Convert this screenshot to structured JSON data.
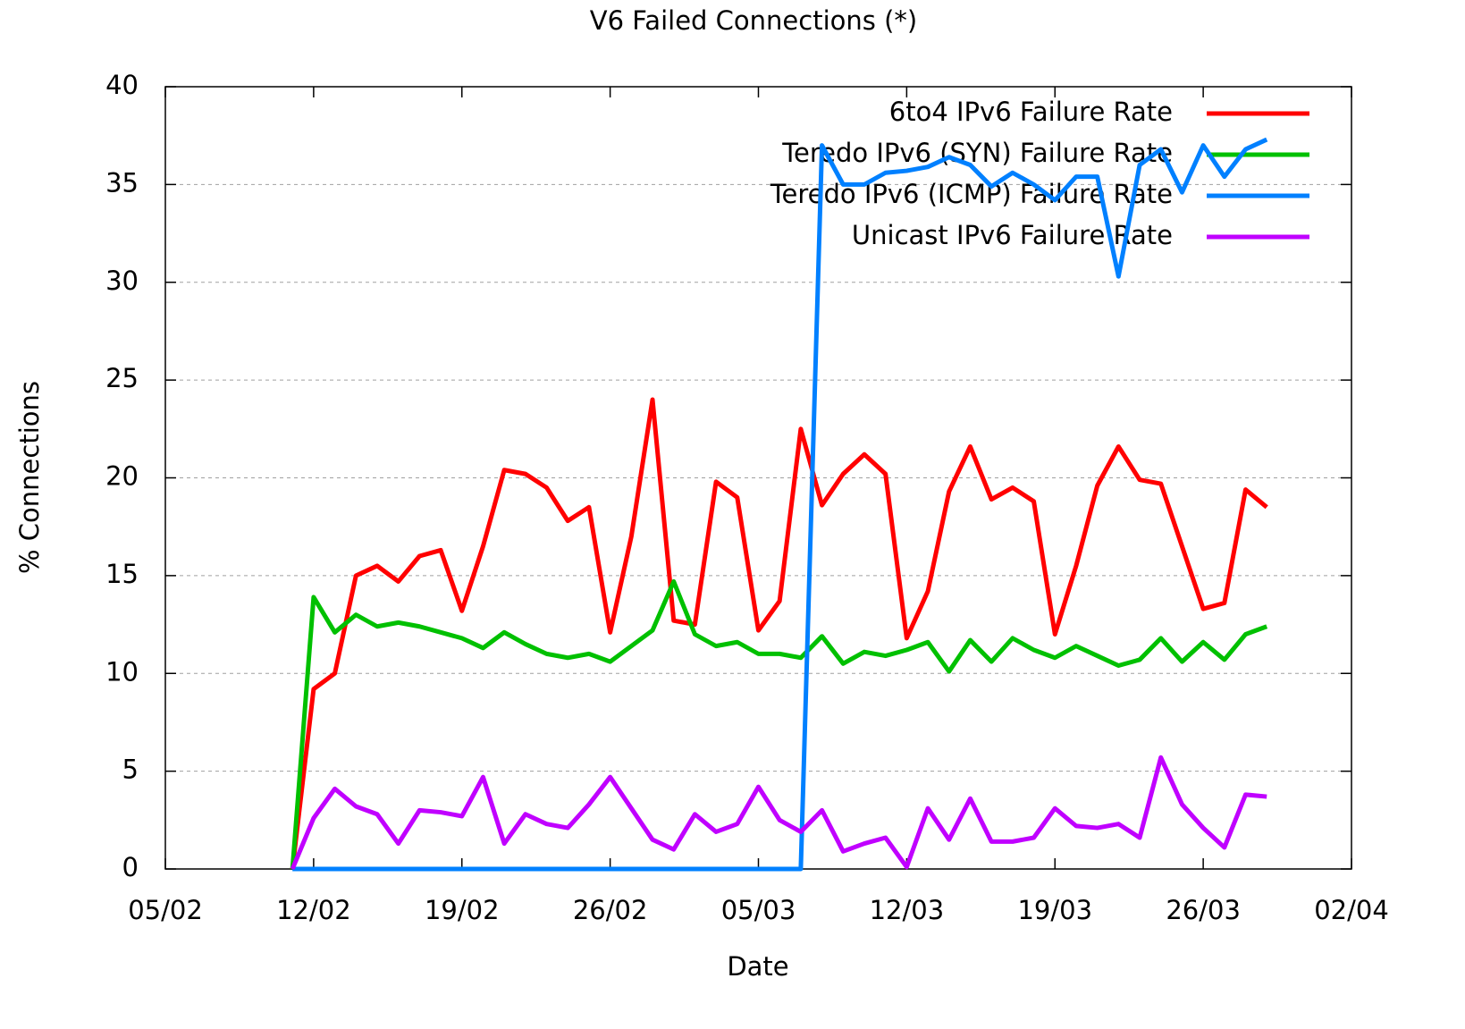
{
  "chart_data": {
    "type": "line",
    "title": "V6 Failed Connections (*)",
    "x_label": "Date",
    "y_label": "% Connections",
    "x": [
      "11/02",
      "12/02",
      "13/02",
      "14/02",
      "15/02",
      "16/02",
      "17/02",
      "18/02",
      "19/02",
      "20/02",
      "21/02",
      "22/02",
      "23/02",
      "24/02",
      "25/02",
      "26/02",
      "27/02",
      "28/02",
      "01/03",
      "02/03",
      "03/03",
      "04/03",
      "05/03",
      "06/03",
      "07/03",
      "08/03",
      "09/03",
      "10/03",
      "11/03",
      "12/03",
      "13/03",
      "14/03",
      "15/03",
      "16/03",
      "17/03",
      "18/03",
      "19/03",
      "20/03",
      "21/03",
      "22/03",
      "23/03",
      "24/03",
      "25/03",
      "26/03",
      "27/03",
      "28/03",
      "29/03"
    ],
    "series": [
      {
        "name": "6to4 IPv6 Failure Rate",
        "color": "#ff0000",
        "values": [
          0,
          9.2,
          10,
          15,
          15.5,
          14.7,
          16,
          16.3,
          13.2,
          16.5,
          20.4,
          20.2,
          19.5,
          17.8,
          18.5,
          12.1,
          17,
          24,
          12.7,
          12.5,
          19.8,
          19,
          12.2,
          13.7,
          22.5,
          18.6,
          20.2,
          21.2,
          20.2,
          11.8,
          14.2,
          19.3,
          21.6,
          18.9,
          19.5,
          18.8,
          12,
          15.5,
          19.6,
          21.6,
          19.9,
          19.7,
          16.5,
          13.3,
          13.6,
          19.4,
          18.5
        ]
      },
      {
        "name": "Teredo IPv6 (SYN) Failure Rate",
        "color": "#00c000",
        "values": [
          0,
          13.9,
          12.1,
          13,
          12.4,
          12.6,
          12.4,
          12.1,
          11.8,
          11.3,
          12.1,
          11.5,
          11,
          10.8,
          11,
          10.6,
          11.4,
          12.2,
          14.7,
          12,
          11.4,
          11.6,
          11,
          11,
          10.8,
          11.9,
          10.5,
          11.1,
          10.9,
          11.2,
          11.6,
          10.1,
          11.7,
          10.6,
          11.8,
          11.2,
          10.8,
          11.4,
          10.9,
          10.4,
          10.7,
          11.8,
          10.6,
          11.6,
          10.7,
          12,
          12.4
        ]
      },
      {
        "name": "Teredo IPv6 (ICMP) Failure Rate",
        "color": "#0080ff",
        "values": [
          0,
          0,
          0,
          0,
          0,
          0,
          0,
          0,
          0,
          0,
          0,
          0,
          0,
          0,
          0,
          0,
          0,
          0,
          0,
          0,
          0,
          0,
          0,
          0,
          0,
          37,
          35,
          35,
          35.6,
          35.7,
          35.9,
          36.4,
          36,
          34.9,
          35.6,
          35,
          34.2,
          35.4,
          35.4,
          30.3,
          36,
          36.8,
          34.6,
          37,
          35.4,
          36.8,
          37.3
        ]
      },
      {
        "name": "Unicast IPv6 Failure Rate",
        "color": "#c000ff",
        "values": [
          0,
          2.6,
          4.1,
          3.2,
          2.8,
          1.3,
          3,
          2.9,
          2.7,
          4.7,
          1.3,
          2.8,
          2.3,
          2.1,
          3.3,
          4.7,
          3.1,
          1.5,
          1,
          2.8,
          1.9,
          2.3,
          4.2,
          2.5,
          1.9,
          3,
          0.9,
          1.3,
          1.6,
          0.1,
          3.1,
          1.5,
          3.6,
          1.4,
          1.4,
          1.6,
          3.1,
          2.2,
          2.1,
          2.3,
          1.6,
          5.7,
          3.3,
          2.1,
          1.1,
          3.8,
          3.7
        ]
      }
    ],
    "xlim": [
      "05/02",
      "02/04"
    ],
    "xticks": [
      "05/02",
      "12/02",
      "19/02",
      "26/02",
      "05/03",
      "12/03",
      "19/03",
      "26/03",
      "02/04"
    ],
    "ylim": [
      0,
      40
    ],
    "yticks": [
      0,
      5,
      10,
      15,
      20,
      25,
      30,
      35,
      40
    ],
    "grid": true,
    "legend": "top-right"
  }
}
